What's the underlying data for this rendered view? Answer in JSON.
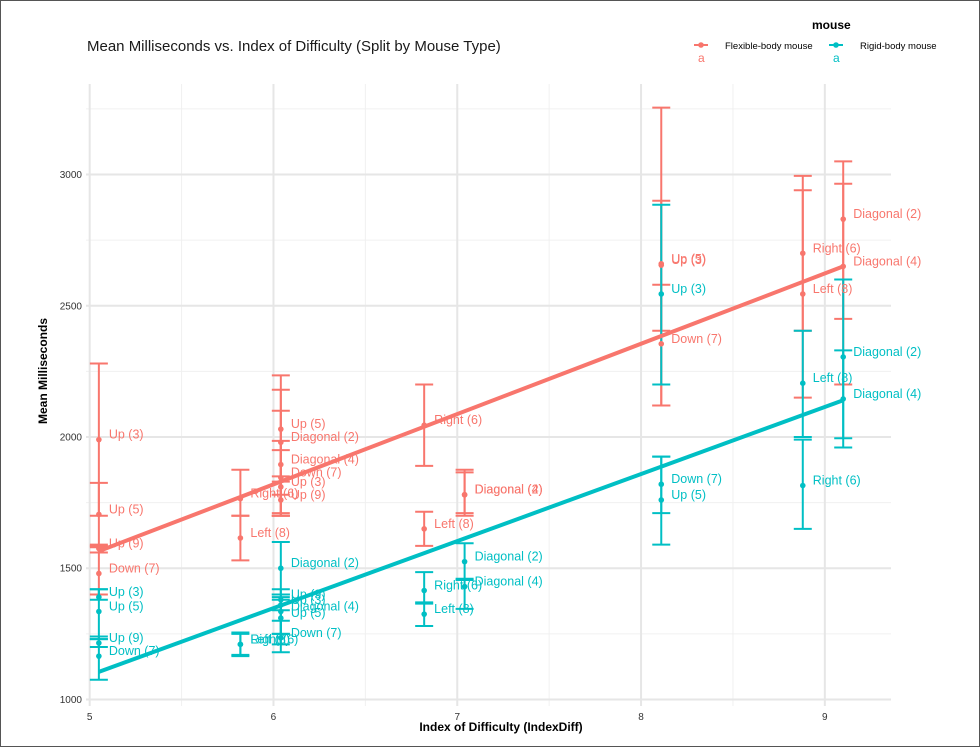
{
  "chart_data": {
    "type": "scatter",
    "title": "Mean Milliseconds vs. Index of Difficulty (Split by Mouse Type)",
    "xlabel": "Index of Difficulty (IndexDiff)",
    "ylabel": "Mean Milliseconds",
    "xlim": [
      4.98,
      9.36
    ],
    "ylim": [
      975,
      3345
    ],
    "x_ticks": [
      5,
      6,
      7,
      8,
      9
    ],
    "y_ticks": [
      1000,
      1500,
      2000,
      2500,
      3000
    ],
    "grid": true,
    "legend": {
      "title": "mouse",
      "position": "top-right",
      "key_glyph": "a"
    },
    "series": [
      {
        "name": "Flexible-body mouse",
        "color": "#F8766D",
        "trend": {
          "x": [
            5.05,
            9.1
          ],
          "y": [
            1565,
            2650
          ]
        },
        "points": [
          {
            "x": 5.05,
            "y": 1990,
            "lo": 1700,
            "hi": 2280,
            "label": "Up (3)"
          },
          {
            "x": 5.05,
            "y": 1705,
            "lo": 1585,
            "hi": 1825,
            "label": "Up (5)"
          },
          {
            "x": 5.05,
            "y": 1575,
            "lo": 1560,
            "hi": 1590,
            "label": "Up (9)"
          },
          {
            "x": 5.05,
            "y": 1480,
            "lo": 1400,
            "hi": 1580,
            "label": "Down (7)"
          },
          {
            "x": 5.82,
            "y": 1765,
            "lo": 1700,
            "hi": 1875,
            "label": "Right (6)"
          },
          {
            "x": 5.82,
            "y": 1615,
            "lo": 1530,
            "hi": 1700,
            "label": "Left (8)"
          },
          {
            "x": 6.04,
            "y": 2030,
            "lo": 1830,
            "hi": 2235,
            "label": "Up (5)"
          },
          {
            "x": 6.04,
            "y": 1980,
            "lo": 1780,
            "hi": 2180,
            "label": "Diagonal (2)"
          },
          {
            "x": 6.04,
            "y": 1895,
            "lo": 1700,
            "hi": 2100,
            "label": "Diagonal (4)"
          },
          {
            "x": 6.04,
            "y": 1845,
            "lo": 1710,
            "hi": 1985,
            "label": "Down (7)"
          },
          {
            "x": 6.04,
            "y": 1810,
            "lo": 1700,
            "hi": 1950,
            "label": "Up (3)"
          },
          {
            "x": 6.04,
            "y": 1760,
            "lo": 1700,
            "hi": 1850,
            "label": "Up (9)"
          },
          {
            "x": 6.82,
            "y": 2045,
            "lo": 1890,
            "hi": 2200,
            "label": "Right (6)"
          },
          {
            "x": 6.82,
            "y": 1650,
            "lo": 1585,
            "hi": 1715,
            "label": "Left (8)"
          },
          {
            "x": 7.04,
            "y": 1780,
            "lo": 1700,
            "hi": 1875,
            "label": "Diagonal (2)"
          },
          {
            "x": 7.04,
            "y": 1780,
            "lo": 1710,
            "hi": 1865,
            "label": "Diagonal (4)"
          },
          {
            "x": 8.11,
            "y": 2660,
            "lo": 2120,
            "hi": 3255,
            "label": "Up (5)"
          },
          {
            "x": 8.11,
            "y": 2655,
            "lo": 2405,
            "hi": 2900,
            "label": "Up (3)"
          },
          {
            "x": 8.11,
            "y": 2355,
            "lo": 2120,
            "hi": 2580,
            "label": "Down (7)"
          },
          {
            "x": 8.88,
            "y": 2700,
            "lo": 2405,
            "hi": 2995,
            "label": "Right (6)"
          },
          {
            "x": 8.88,
            "y": 2545,
            "lo": 2150,
            "hi": 2940,
            "label": "Left (8)"
          },
          {
            "x": 9.1,
            "y": 2830,
            "lo": 2450,
            "hi": 3050,
            "label": "Diagonal (2)"
          },
          {
            "x": 9.1,
            "y": 2650,
            "lo": 2200,
            "hi": 2965,
            "label": "Diagonal (4)"
          }
        ]
      },
      {
        "name": "Rigid-body mouse",
        "color": "#00BFC4",
        "trend": {
          "x": [
            5.05,
            9.1
          ],
          "y": [
            1105,
            2140
          ]
        },
        "points": [
          {
            "x": 5.05,
            "y": 1390,
            "lo": 1380,
            "hi": 1420,
            "label": "Up (3)"
          },
          {
            "x": 5.05,
            "y": 1335,
            "lo": 1230,
            "hi": 1420,
            "label": "Up (5)"
          },
          {
            "x": 5.05,
            "y": 1215,
            "lo": 1200,
            "hi": 1240,
            "label": "Up (9)"
          },
          {
            "x": 5.05,
            "y": 1165,
            "lo": 1075,
            "hi": 1230,
            "label": "Down (7)"
          },
          {
            "x": 5.82,
            "y": 1210,
            "lo": 1165,
            "hi": 1255,
            "label": "Right (6)"
          },
          {
            "x": 5.82,
            "y": 1210,
            "lo": 1170,
            "hi": 1250,
            "label": "Left (8)"
          },
          {
            "x": 6.04,
            "y": 1500,
            "lo": 1400,
            "hi": 1600,
            "label": "Diagonal (2)"
          },
          {
            "x": 6.04,
            "y": 1380,
            "lo": 1340,
            "hi": 1420,
            "label": "Up (9)"
          },
          {
            "x": 6.04,
            "y": 1360,
            "lo": 1250,
            "hi": 1390,
            "label": "Up (3)"
          },
          {
            "x": 6.04,
            "y": 1335,
            "lo": 1250,
            "hi": 1400,
            "label": "Diagonal (4)"
          },
          {
            "x": 6.04,
            "y": 1310,
            "lo": 1210,
            "hi": 1380,
            "label": "Up (5)"
          },
          {
            "x": 6.04,
            "y": 1235,
            "lo": 1180,
            "hi": 1300,
            "label": "Down (7)"
          },
          {
            "x": 6.82,
            "y": 1415,
            "lo": 1365,
            "hi": 1485,
            "label": "Right (6)"
          },
          {
            "x": 6.82,
            "y": 1325,
            "lo": 1280,
            "hi": 1370,
            "label": "Left (8)"
          },
          {
            "x": 7.04,
            "y": 1525,
            "lo": 1460,
            "hi": 1595,
            "label": "Diagonal (2)"
          },
          {
            "x": 7.04,
            "y": 1430,
            "lo": 1345,
            "hi": 1455,
            "label": "Diagonal (4)"
          },
          {
            "x": 8.11,
            "y": 2545,
            "lo": 2200,
            "hi": 2885,
            "label": "Up (3)"
          },
          {
            "x": 8.11,
            "y": 1820,
            "lo": 1710,
            "hi": 1925,
            "label": "Down (7)"
          },
          {
            "x": 8.11,
            "y": 1760,
            "lo": 1590,
            "hi": 1925,
            "label": "Up (5)"
          },
          {
            "x": 8.88,
            "y": 2205,
            "lo": 2000,
            "hi": 2405,
            "label": "Left (8)"
          },
          {
            "x": 8.88,
            "y": 1815,
            "lo": 1650,
            "hi": 1990,
            "label": "Right (6)"
          },
          {
            "x": 9.1,
            "y": 2305,
            "lo": 1995,
            "hi": 2600,
            "label": "Diagonal (2)"
          },
          {
            "x": 9.1,
            "y": 2145,
            "lo": 1960,
            "hi": 2330,
            "label": "Diagonal (4)"
          }
        ]
      }
    ]
  }
}
